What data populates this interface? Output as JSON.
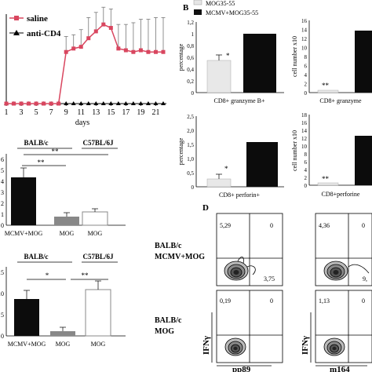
{
  "panelA": {
    "legend": {
      "saline": "saline",
      "antiCD4": "anti-CD4"
    },
    "xticks": [
      "1",
      "3",
      "5",
      "7",
      "9",
      "11",
      "13",
      "15",
      "17",
      "19",
      "21"
    ],
    "xlabel": "days",
    "colors": {
      "saline": "#d9465f",
      "antiCD4": "#000000"
    }
  },
  "chart_data": [
    {
      "type": "line",
      "xlabel": "days",
      "x": [
        1,
        2,
        3,
        4,
        5,
        6,
        7,
        8,
        9,
        10,
        11,
        12,
        13,
        14,
        15,
        16,
        17,
        18,
        19,
        20,
        21,
        22
      ],
      "series": [
        {
          "name": "saline",
          "values": [
            0,
            0,
            0,
            0,
            0,
            0,
            0,
            0,
            1.5,
            1.6,
            1.65,
            1.9,
            2.1,
            2.3,
            2.2,
            1.6,
            1.55,
            1.5,
            1.55,
            1.5,
            1.5,
            1.5
          ]
        },
        {
          "name": "anti-CD4",
          "values": [
            0,
            0,
            0,
            0,
            0,
            0,
            0,
            0,
            0,
            0,
            0,
            0,
            0,
            0,
            0,
            0,
            0,
            0,
            0,
            0,
            0,
            0
          ]
        }
      ]
    },
    {
      "type": "bar",
      "categories": [
        "CD8+ granzyme B+"
      ],
      "series": [
        {
          "name": "MOG35-55",
          "values": [
            0.55
          ]
        },
        {
          "name": "MCMV+MOG35-55",
          "values": [
            1.0
          ]
        }
      ],
      "ylabel": "percentage",
      "ylim": [
        0,
        1.2
      ]
    },
    {
      "type": "bar",
      "categories": [
        "CD8+ perforin+"
      ],
      "series": [
        {
          "name": "MOG35-55",
          "values": [
            0.3
          ]
        },
        {
          "name": "MCMV+MOG35-55",
          "values": [
            1.85
          ]
        }
      ],
      "ylabel": "percentage",
      "ylim": [
        0,
        2.5
      ]
    },
    {
      "type": "bar",
      "categories": [
        "MCMV+MOG",
        "MOG",
        "MOG"
      ],
      "values": [
        5.0,
        0.6,
        1.0
      ]
    },
    {
      "type": "bar",
      "categories": [
        "MCMV+MOG",
        "MOG",
        "MOG"
      ],
      "values": [
        7.5,
        0.8,
        9.5
      ]
    }
  ],
  "panelB": {
    "label": "B",
    "legend": {
      "mog": "MOG35-55",
      "mcmv": "MCMV+MOG35-55"
    },
    "topLeft": {
      "ylabel": "percentage",
      "yticks": [
        "0",
        "0,2",
        "0,4",
        "0,6",
        "0,8",
        "1",
        "1,2"
      ],
      "xlabel": "CD8+ granzyme B+",
      "star": "*"
    },
    "topRight": {
      "ylabel": "cell number x10",
      "yticks": [
        "0",
        "2",
        "4",
        "6",
        "8",
        "10",
        "12",
        "14",
        "16"
      ],
      "xlabel": "CD8+ granzyme",
      "star": "**"
    },
    "botLeft": {
      "ylabel": "percentage",
      "yticks": [
        "0",
        "0,5",
        "1,0",
        "1,5",
        "2,0",
        "2,5"
      ],
      "xlabel": "CD8+ perforin+",
      "star": "*"
    },
    "botRight": {
      "ylabel": "cell number x10",
      "yticks": [
        "0",
        "2",
        "4",
        "6",
        "8",
        "10",
        "12",
        "14",
        "16",
        "18"
      ],
      "xlabel": "CD8+perforine",
      "star": "**"
    }
  },
  "panelC1": {
    "group1": "BALB/c",
    "group2": "C57BL/6J",
    "sig1": "**",
    "sig2": "**",
    "yticks": [
      "0",
      "1",
      "2",
      "3",
      "4",
      "5",
      "6"
    ],
    "categories": [
      "MCMV+MOG",
      "MOG",
      "MOG"
    ]
  },
  "panelC2": {
    "group1": "BALB/c",
    "group2": "C57BL/6J",
    "sig1": "*",
    "sig2": "**",
    "yticks": [
      "0",
      "5",
      "10",
      "15"
    ],
    "categories": [
      "MCMV+MOG",
      "MOG",
      "MOG"
    ]
  },
  "panelD": {
    "label": "D",
    "row1": [
      "BALB/c",
      "MCMV+MOG"
    ],
    "row2": [
      "BALB/c",
      "MOG"
    ],
    "ylabel": "IFNγ",
    "xlabel1": "pp89",
    "xlabel2": "m164",
    "q": {
      "r1c1": {
        "ul": "5,29",
        "ur": "0",
        "lr": "3,75"
      },
      "r1c2": {
        "ul": "4,36",
        "ur": "0",
        "lr": "9,"
      },
      "r2c1": {
        "ul": "0,19",
        "ur": "0"
      },
      "r2c2": {
        "ul": "1,13",
        "ur": "0"
      }
    }
  }
}
